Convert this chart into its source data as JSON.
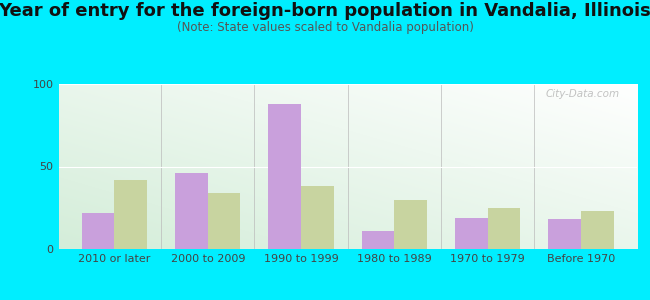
{
  "title": "Year of entry for the foreign-born population in Vandalia, Illinois",
  "subtitle": "(Note: State values scaled to Vandalia population)",
  "categories": [
    "2010 or later",
    "2000 to 2009",
    "1990 to 1999",
    "1980 to 1989",
    "1970 to 1979",
    "Before 1970"
  ],
  "vandalia": [
    22,
    46,
    88,
    11,
    19,
    18
  ],
  "illinois": [
    42,
    34,
    38,
    30,
    25,
    23
  ],
  "vandalia_color": "#c9a0dc",
  "illinois_color": "#c8d4a0",
  "bg_outer": "#00eeff",
  "ylim": [
    0,
    100
  ],
  "yticks": [
    0,
    50,
    100
  ],
  "bar_width": 0.35,
  "title_fontsize": 13,
  "subtitle_fontsize": 8.5,
  "tick_fontsize": 8,
  "legend_fontsize": 9,
  "watermark_text": "City-Data.com"
}
